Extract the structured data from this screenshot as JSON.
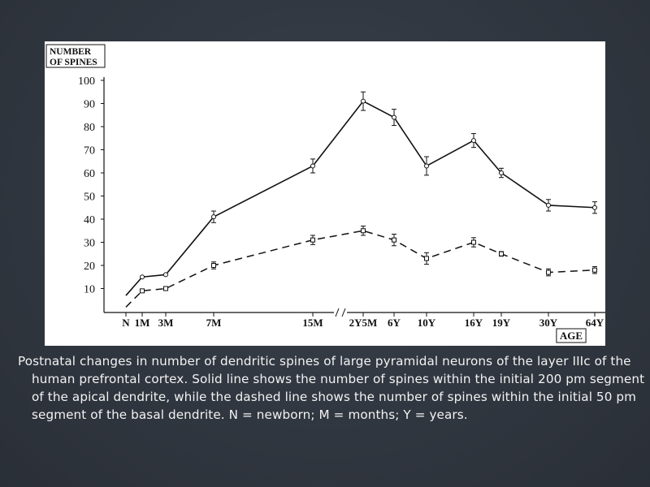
{
  "caption": "Postnatal changes in number of dendritic spines of large pyramidal neurons of the layer IIIc of the human prefrontal cortex. Solid line shows the number of spines within the initial 200 pm segment of the apical dendrite, while the dashed line shows the number of spines within the initial 50 pm segment of the basal dendrite. N = newborn; M = months; Y = years.",
  "colors": {
    "background": "#2f3540",
    "figure_background": "#ffffff",
    "ink": "#111111",
    "caption_text": "#f2f2f2"
  },
  "chart_data": {
    "type": "line",
    "title": "",
    "ylabel": "NUMBER OF SPINES",
    "xlabel": "AGE",
    "ylim": [
      0,
      100
    ],
    "yticks": [
      10,
      20,
      30,
      40,
      50,
      60,
      70,
      80,
      90,
      100
    ],
    "grid": false,
    "legend": "none",
    "categories": [
      "N",
      "1M",
      "3M",
      "7M",
      "15M",
      "2Y5M",
      "6Y",
      "10Y",
      "16Y",
      "19Y",
      "30Y",
      "64Y"
    ],
    "series": [
      {
        "style": "solid",
        "values": [
          7,
          15,
          16,
          41,
          63,
          91,
          84,
          63,
          74,
          60,
          46,
          45
        ],
        "errors": [
          0,
          0,
          0,
          2.5,
          3,
          4,
          3.5,
          4,
          3,
          2,
          2.5,
          2.5
        ]
      },
      {
        "style": "dashed",
        "values": [
          2,
          9,
          10,
          20,
          31,
          35,
          31,
          23,
          30,
          25,
          17,
          18
        ],
        "errors": [
          0,
          0,
          0,
          1.5,
          2,
          2,
          2.5,
          2.5,
          2,
          1,
          1.5,
          1.5
        ]
      }
    ]
  }
}
